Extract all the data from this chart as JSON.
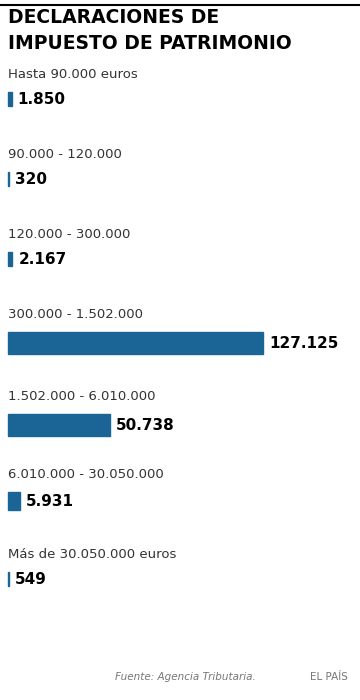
{
  "title_line1": "DECLARACIONES DE",
  "title_line2": "IMPUESTO DE PATRIMONIO",
  "categories": [
    "Hasta 90.000 euros",
    "90.000 - 120.000",
    "120.000 - 300.000",
    "300.000 - 1.502.000",
    "1.502.000 - 6.010.000",
    "6.010.000 - 30.050.000",
    "Más de 30.050.000 euros"
  ],
  "values": [
    1850,
    320,
    2167,
    127125,
    50738,
    5931,
    549
  ],
  "labels": [
    "1.850",
    "320",
    "2.167",
    "127.125",
    "50.738",
    "5.931",
    "549"
  ],
  "bar_color": "#1a6496",
  "source_left": "Fuente: Agencia Tributaria.",
  "source_right": "EL PAÍS",
  "bg_color": "#ffffff",
  "text_color": "#000000",
  "cat_text_color": "#333333",
  "label_fontsize": 11,
  "cat_fontsize": 9.5,
  "title_fontsize": 13.5,
  "footer_fontsize": 7.5
}
